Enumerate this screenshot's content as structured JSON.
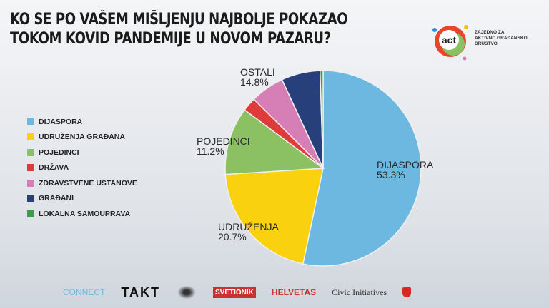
{
  "chart_data": {
    "type": "pie",
    "title": "KO SE PO VAŠEM MIŠLJENJU NAJBOLJE POKAZAO TOKOM KOVID PANDEMIJE U NOVOM PAZARU?",
    "title_lines": [
      "KO SE PO VAŠEM MIŠLJENJU NAJBOLJE POKAZAO",
      "TOKOM KOVID PANDEMIJE U NOVOM PAZARU?"
    ],
    "legend_placement": "left",
    "slices": [
      {
        "name": "DIJASPORA",
        "value": 53.3,
        "color": "#6cb8e0"
      },
      {
        "name": "UDRUŽENJA GRAĐANA",
        "value": 20.7,
        "color": "#f9d10f"
      },
      {
        "name": "POJEDINCI",
        "value": 11.2,
        "color": "#8cc163"
      },
      {
        "name": "DRŽAVA",
        "value": 2.3,
        "color": "#de3b3b"
      },
      {
        "name": "ZDRAVSTVENE USTANOVE",
        "value": 5.6,
        "color": "#d67fb6"
      },
      {
        "name": "GRAĐANI",
        "value": 6.4,
        "color": "#273f7b"
      },
      {
        "name": "LOKALNA SAMOUPRAVA",
        "value": 0.5,
        "color": "#3c9b4c"
      }
    ],
    "annotations": [
      {
        "label": "DIJASPORA",
        "value": "53.3%"
      },
      {
        "label": "UDRUŽENJA",
        "value": "20.7%"
      },
      {
        "label": "POJEDINCI",
        "value": "11.2%"
      },
      {
        "label": "OSTALI",
        "value": "14.8%"
      }
    ]
  },
  "logo": {
    "mark": "act",
    "text": [
      "ZAJEDNO ZA",
      "AKTIVNO GRAĐANSKO",
      "DRUŠTVO"
    ]
  },
  "footer_logos": [
    "CONNECT",
    "TAKT",
    "SVETIONIK",
    "HELVETAS",
    "Civic Initiatives"
  ]
}
